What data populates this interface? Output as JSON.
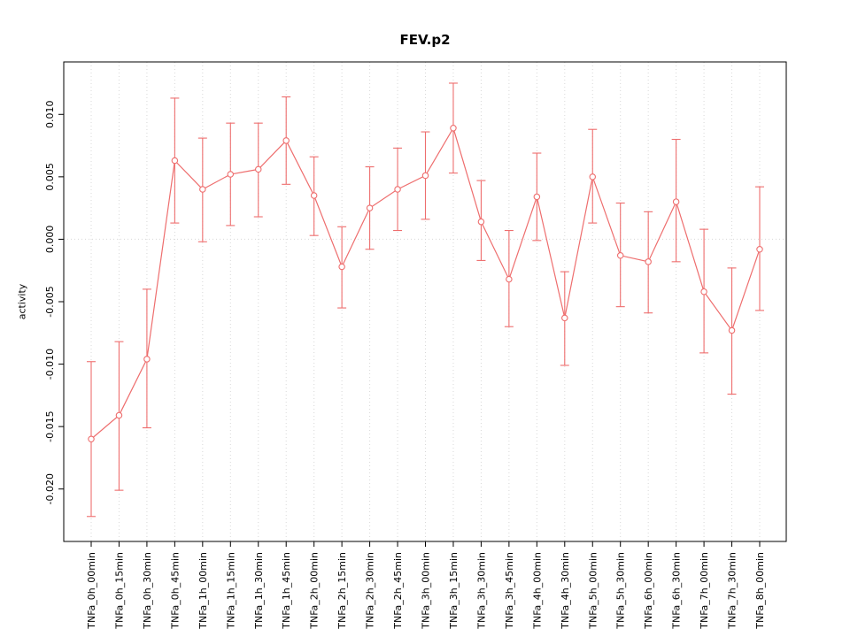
{
  "chart_data": {
    "type": "line",
    "title": "FEV.p2",
    "xlabel": "",
    "ylabel": "activity",
    "ylim": [
      -0.0242,
      0.0142
    ],
    "ytick_labels": [
      "0.010",
      "0.005",
      "0.000",
      "-0.005",
      "-0.010",
      "-0.015",
      "-0.020"
    ],
    "grid": {
      "vertical": true,
      "horizontal_at": 0,
      "style": "dotted",
      "color": "#d8d8d8"
    },
    "series_color": "#ee6e6e",
    "point_style": "open-circle",
    "categories": [
      "TNFa_0h_00min",
      "TNFa_0h_15min",
      "TNFa_0h_30min",
      "TNFa_0h_45min",
      "TNFa_1h_00min",
      "TNFa_1h_15min",
      "TNFa_1h_30min",
      "TNFa_1h_45min",
      "TNFa_2h_00min",
      "TNFa_2h_15min",
      "TNFa_2h_30min",
      "TNFa_2h_45min",
      "TNFa_3h_00min",
      "TNFa_3h_15min",
      "TNFa_3h_30min",
      "TNFa_3h_45min",
      "TNFa_4h_00min",
      "TNFa_4h_30min",
      "TNFa_5h_00min",
      "TNFa_5h_30min",
      "TNFa_6h_00min",
      "TNFa_6h_30min",
      "TNFa_7h_00min",
      "TNFa_7h_30min",
      "TNFa_8h_00min"
    ],
    "values": [
      -0.016,
      -0.0141,
      -0.0096,
      0.0063,
      0.004,
      0.0052,
      0.0056,
      0.0079,
      0.0035,
      -0.0022,
      0.0025,
      0.004,
      0.0051,
      0.0089,
      0.0014,
      -0.0032,
      0.0034,
      -0.0063,
      0.005,
      -0.0013,
      -0.0018,
      0.003,
      -0.0042,
      -0.0073,
      -0.0008
    ],
    "upper": [
      -0.0098,
      -0.0082,
      -0.004,
      0.0113,
      0.0081,
      0.0093,
      0.0093,
      0.0114,
      0.0066,
      0.001,
      0.0058,
      0.0073,
      0.0086,
      0.0125,
      0.0047,
      0.0007,
      0.0069,
      -0.0026,
      0.0088,
      0.0029,
      0.0022,
      0.008,
      0.0008,
      -0.0023,
      0.0042
    ],
    "lower": [
      -0.0222,
      -0.0201,
      -0.0151,
      0.0013,
      -0.0002,
      0.0011,
      0.0018,
      0.0044,
      0.0003,
      -0.0055,
      -0.0008,
      0.0007,
      0.0016,
      0.0053,
      -0.0017,
      -0.007,
      -0.0001,
      -0.0101,
      0.0013,
      -0.0054,
      -0.0059,
      -0.0018,
      -0.0091,
      -0.0124,
      -0.0057
    ]
  }
}
